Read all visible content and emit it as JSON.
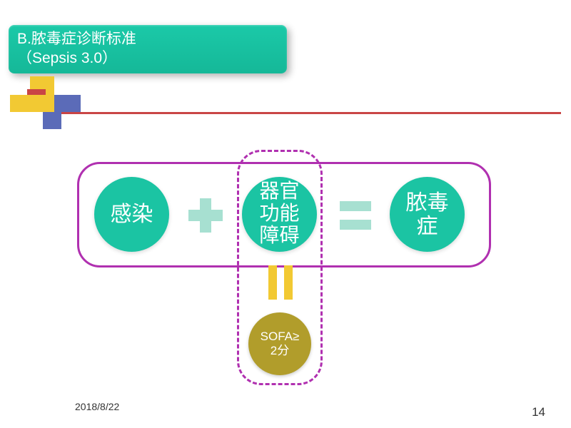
{
  "title": {
    "line1": "B.脓毒症诊断标准",
    "line2": "（Sepsis 3.0）",
    "bg_gradient_top": "#1bc9a8",
    "bg_gradient_bottom": "#15b898",
    "text_color": "#ffffff",
    "fontsize": 21
  },
  "decor_colors": {
    "yellow": "#f2c933",
    "blue": "#5b6bb8",
    "red": "#c94545"
  },
  "diagram": {
    "type": "infographic",
    "outer_border_color": "#b030b0",
    "outer_border_radius": 32,
    "inner_dashed_border_color": "#b030b0",
    "circle_teal_color": "#1bc4a3",
    "circle_olive_color": "#b19d2b",
    "circle_text_color": "#ffffff",
    "plus_equals_color": "#a7e0d1",
    "vertical_equals_color": "#f2c933",
    "nodes": {
      "infection": "感染",
      "organ_dysfunction_l1": "器官",
      "organ_dysfunction_l2": "功能",
      "organ_dysfunction_l3": "障碍",
      "sepsis_l1": "脓毒",
      "sepsis_l2": "症",
      "sofa_l1": "SOFA≥",
      "sofa_l2": "2分"
    },
    "circle_teal_diameter": 105,
    "circle_olive_diameter": 88,
    "teal_fontsize": 30,
    "olive_fontsize": 17
  },
  "footer": {
    "date": "2018/8/22",
    "page": "14",
    "fontsize_date": 14,
    "fontsize_page": 17,
    "text_color": "#333333"
  },
  "background_color": "#ffffff"
}
